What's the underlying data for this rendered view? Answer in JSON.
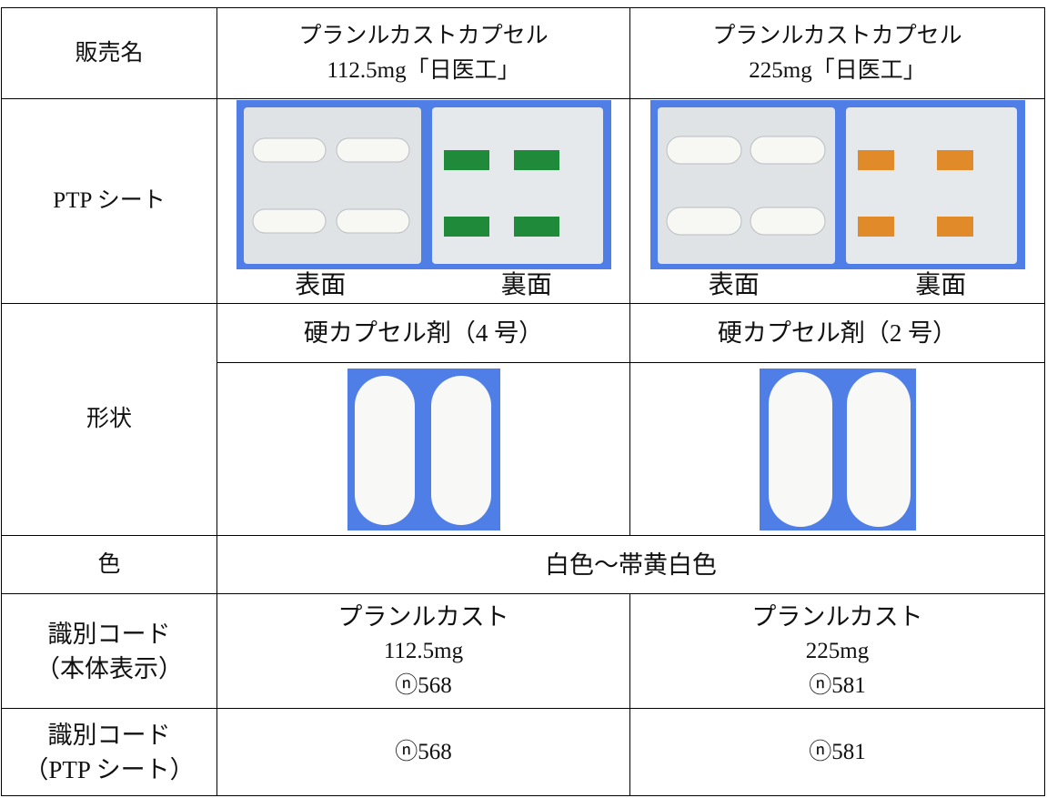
{
  "table": {
    "rows": [
      {
        "label": "販売名",
        "cells": [
          [
            "プランルカストカプセル",
            "112.5mg「日医工」"
          ],
          [
            "プランルカストカプセル",
            "225mg「日医工」"
          ]
        ]
      },
      {
        "label": "PTP シート",
        "cells": [
          [
            "表面",
            "裏面"
          ],
          [
            "表面",
            "裏面"
          ]
        ]
      },
      {
        "label": "形状",
        "cells": [
          [
            "硬カプセル剤（4 号）"
          ],
          [
            "硬カプセル剤（2 号）"
          ]
        ]
      },
      {
        "label": "色",
        "value": "白色～帯黄白色"
      },
      {
        "label": [
          "識別コード",
          "（本体表示）"
        ],
        "cells": [
          [
            "プランルカスト",
            "112.5mg",
            "ⓝ568"
          ],
          [
            "プランルカスト",
            "225mg",
            "ⓝ581"
          ]
        ]
      },
      {
        "label": [
          "識別コード",
          "（PTP シート）"
        ],
        "cells": [
          [
            "ⓝ568"
          ],
          [
            "ⓝ581"
          ]
        ]
      }
    ]
  }
}
